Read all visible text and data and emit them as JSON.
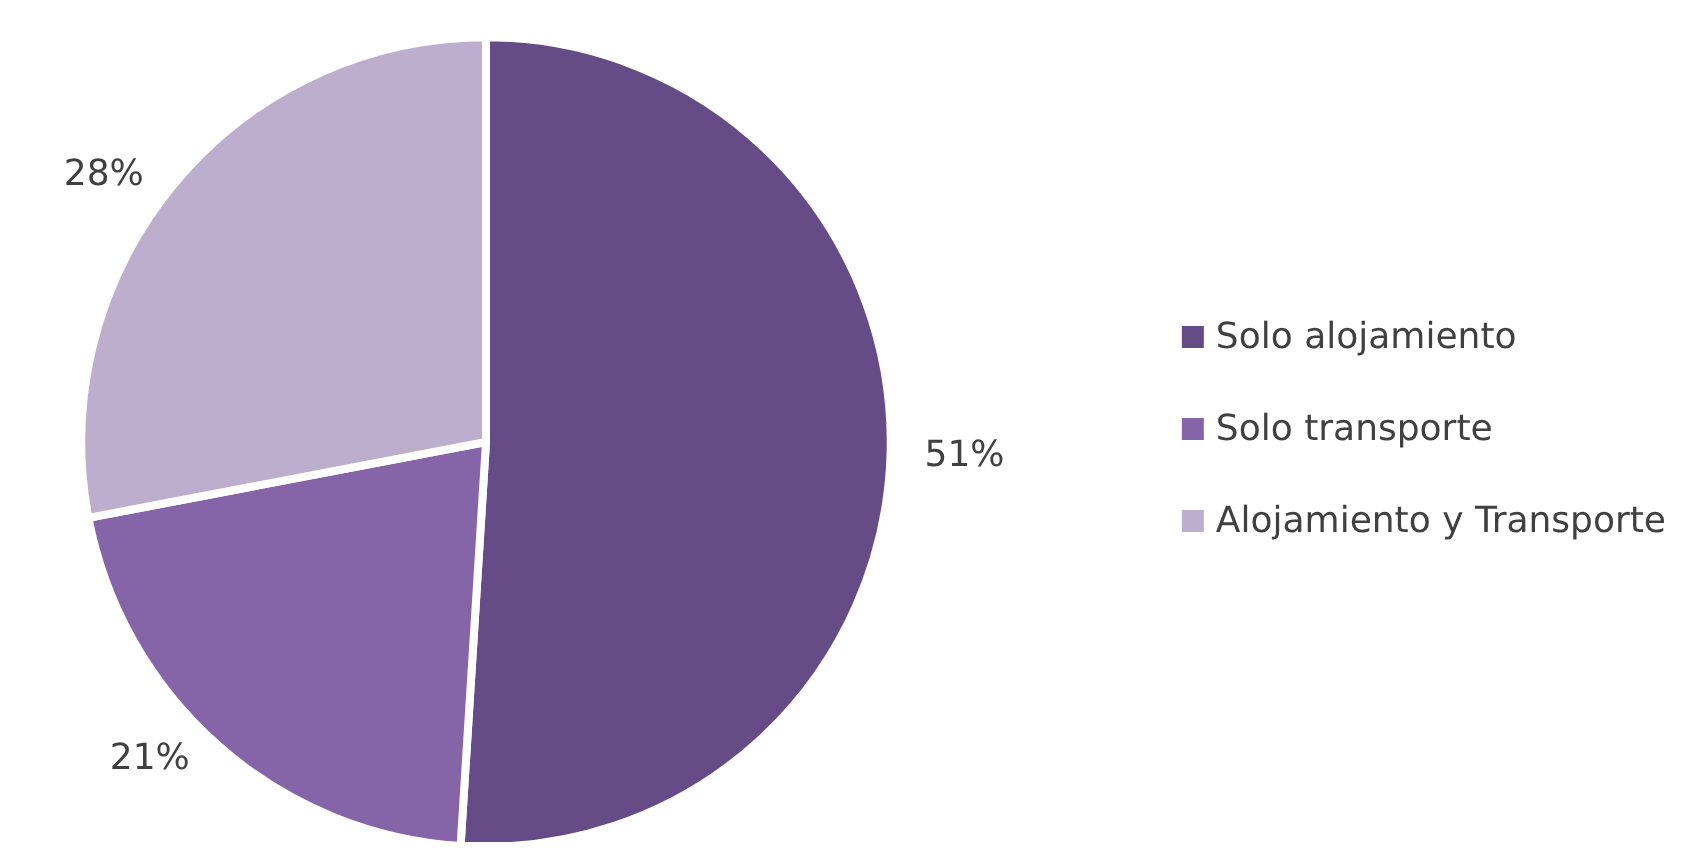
{
  "chart_data": {
    "type": "pie",
    "categories": [
      "Solo alojamiento",
      "Solo transporte",
      "Alojamiento y Transporte"
    ],
    "values": [
      51,
      21,
      28
    ],
    "colors": [
      "#664c86",
      "#8564a8",
      "#bcaecc"
    ],
    "value_labels": [
      "51%",
      "21%",
      "28%"
    ],
    "legend": "right"
  }
}
